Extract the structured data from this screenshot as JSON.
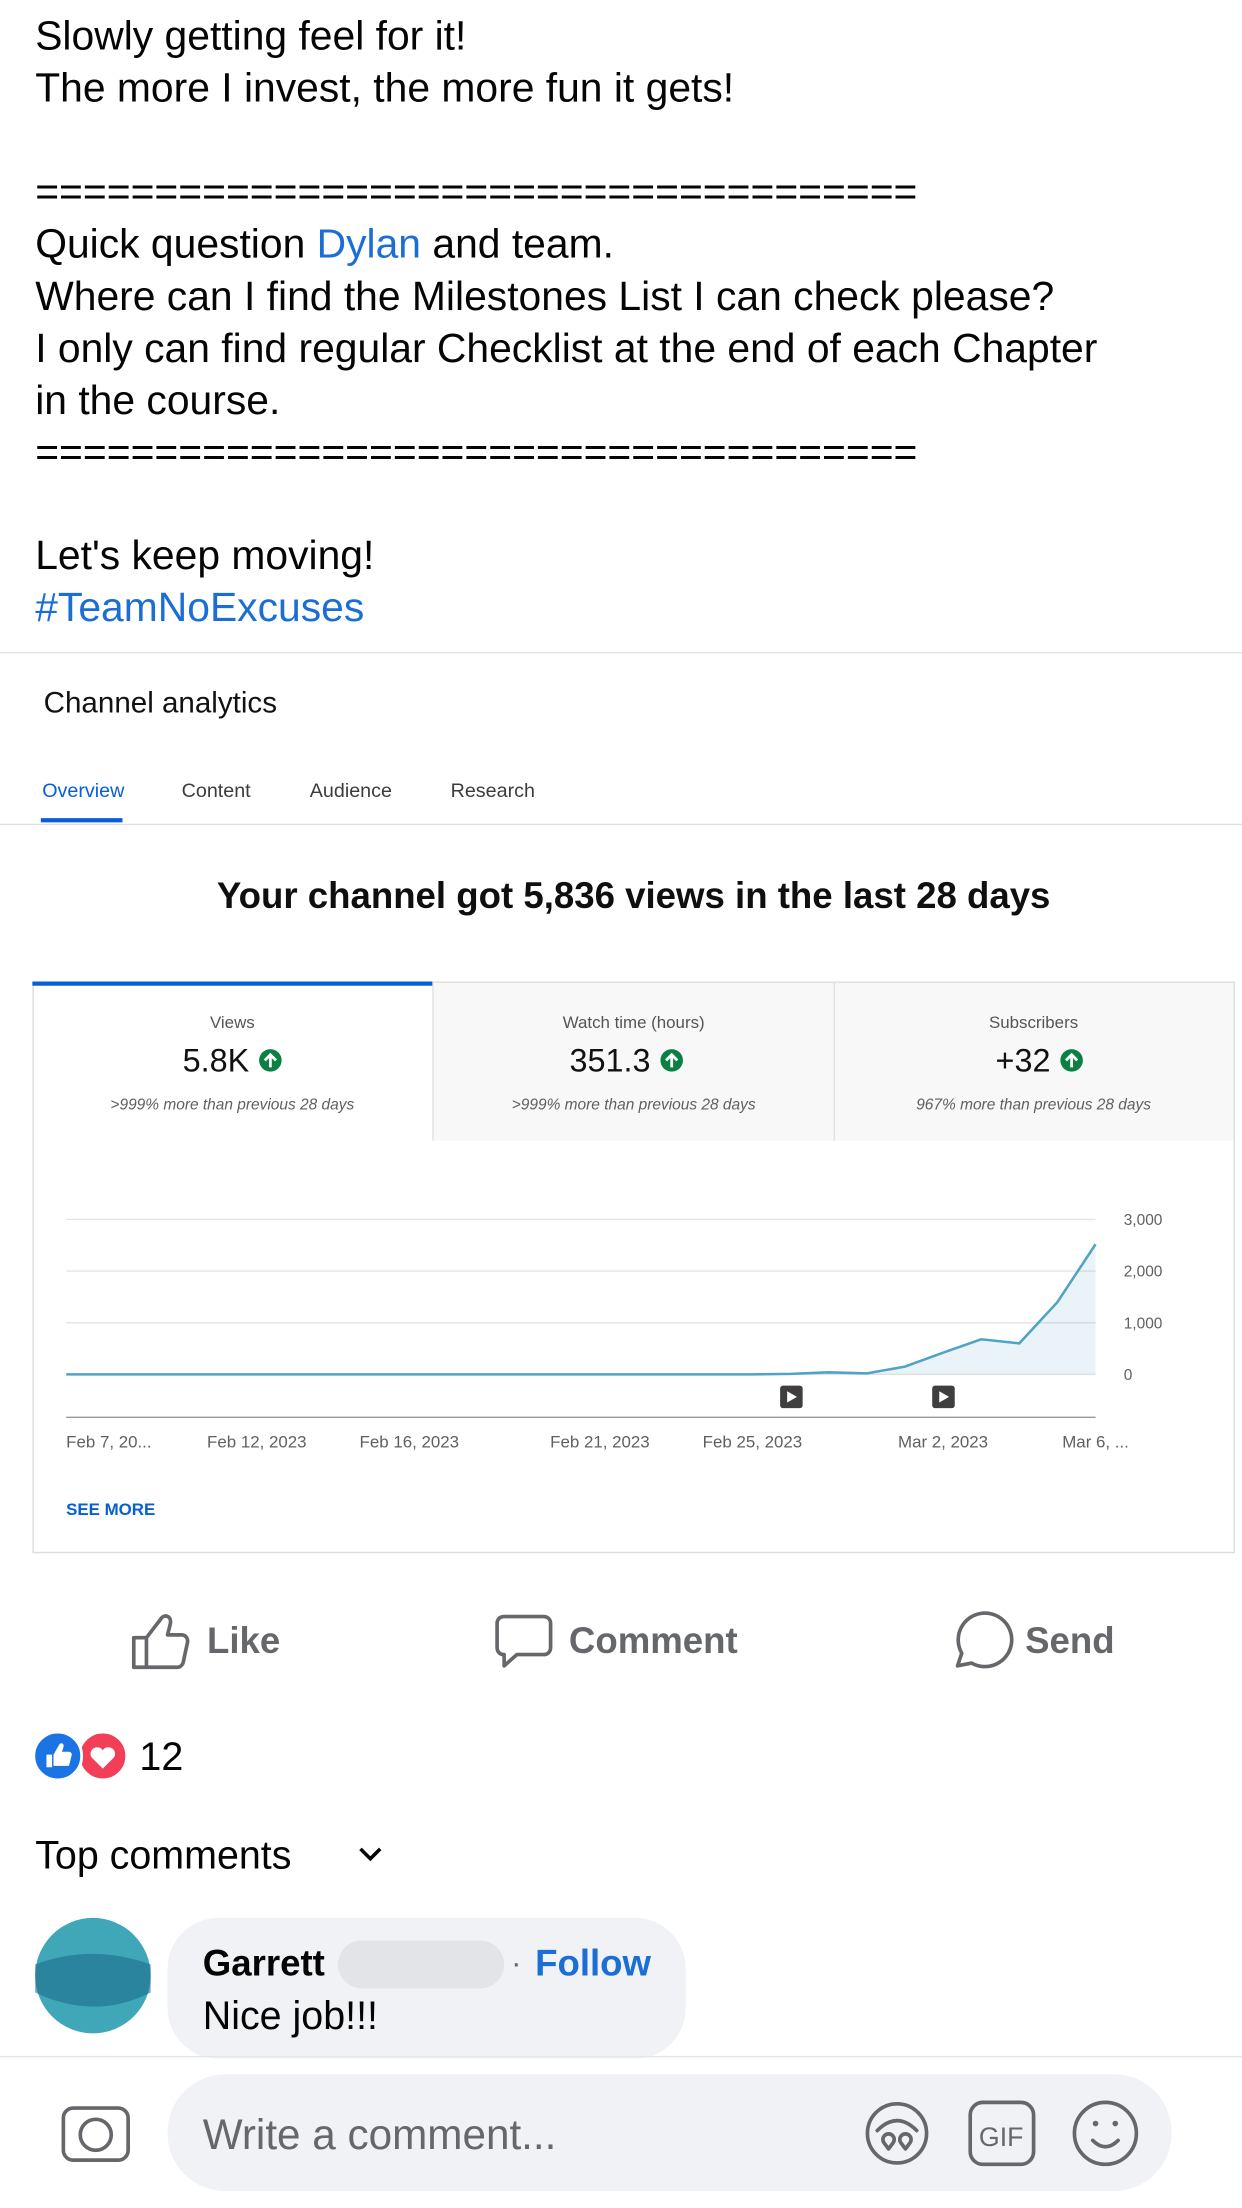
{
  "post": {
    "intro": [
      "Slowly getting feel for it!",
      "The more I invest, the more fun it gets!"
    ],
    "separator_top": "=====================================",
    "question": {
      "before": "Quick question ",
      "mention": "Dylan",
      "after": " and team."
    },
    "body": [
      "Where can I find the Milestones List I can check please?",
      "I only can find regular Checklist at the end of each Chapter",
      "in the course."
    ],
    "separator_bottom": "=====================================",
    "closing": "Let's keep moving!",
    "hashtag": "#TeamNoExcuses"
  },
  "analytics": {
    "title": "Channel analytics",
    "tabs": [
      "Overview",
      "Content",
      "Audience",
      "Research"
    ],
    "headline": "Your channel got 5,836 views in the last 28 days",
    "metrics": [
      {
        "label": "Views",
        "value": "5.8K",
        "change": ">999% more than previous 28 days"
      },
      {
        "label": "Watch time (hours)",
        "value": "351.3",
        "change": ">999% more than previous 28 days"
      },
      {
        "label": "Subscribers",
        "value": "+32",
        "change": "967% more than previous 28 days"
      }
    ],
    "chart": {
      "type": "line",
      "categories": [
        "Feb 7, 20...",
        null,
        null,
        null,
        null,
        "Feb 12, 2023",
        null,
        null,
        null,
        "Feb 16, 2023",
        null,
        null,
        null,
        null,
        "Feb 21, 2023",
        null,
        null,
        null,
        "Feb 25, 2023",
        null,
        null,
        null,
        null,
        "Mar 2, 2023",
        null,
        null,
        null,
        "Mar 6, ..."
      ],
      "values": [
        0,
        0,
        0,
        0,
        0,
        0,
        0,
        0,
        0,
        0,
        0,
        0,
        0,
        0,
        0,
        0,
        0,
        0,
        0,
        10,
        40,
        20,
        150,
        420,
        680,
        600,
        1400,
        2520
      ],
      "color": "#4fa3c7",
      "ylim": [
        0,
        3000
      ],
      "yticks": [
        0,
        {
          "value": 1000,
          "label": "1,000"
        },
        {
          "value": 2000,
          "label": "2,000"
        },
        {
          "value": 3000,
          "label": "3,000"
        }
      ],
      "grid": true
    },
    "see_more": "SEE MORE"
  },
  "actions": [
    "Like",
    "Comment",
    "Send"
  ],
  "reactions_count": 12,
  "top_comments": "Top comments",
  "comment": {
    "author": "Garrett",
    "separator": "·",
    "follow": "Follow",
    "text": "Nice job!!!"
  },
  "composer": {
    "placeholder": "Write a comment...",
    "gif": "GIF"
  }
}
